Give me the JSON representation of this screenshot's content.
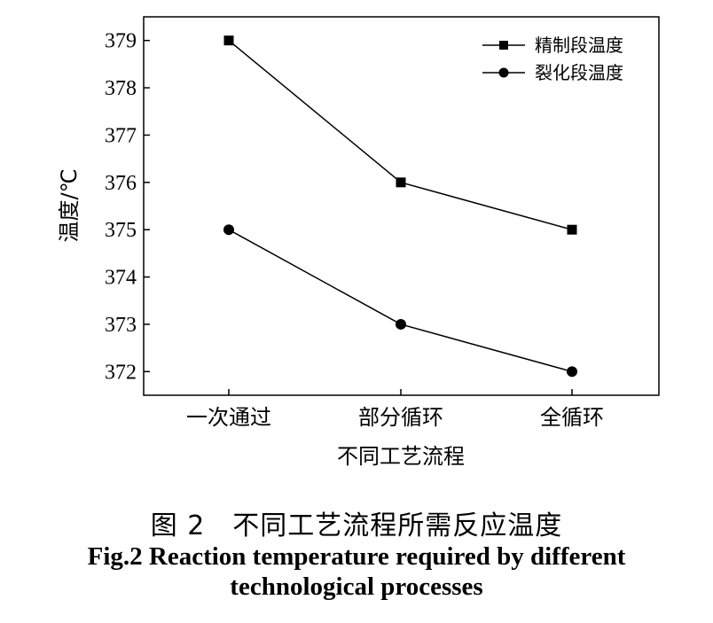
{
  "chart_data": {
    "type": "line",
    "categories": [
      "一次通过",
      "部分循环",
      "全循环"
    ],
    "series": [
      {
        "name": "精制段温度",
        "values": [
          379,
          376,
          375
        ],
        "marker": "square",
        "color": "#000000"
      },
      {
        "name": "裂化段温度",
        "values": [
          375,
          373,
          372
        ],
        "marker": "circle",
        "color": "#000000"
      }
    ],
    "xlabel": "不同工艺流程",
    "ylabel": "温度/℃",
    "ylim": [
      371.5,
      379.5
    ],
    "yticks": [
      372,
      373,
      374,
      375,
      376,
      377,
      378,
      379
    ],
    "grid": false,
    "legend_position": "top-right"
  },
  "caption": {
    "cn": "图 2　不同工艺流程所需反应温度",
    "en_line1": "Fig.2 Reaction temperature required by different",
    "en_line2": "technological processes"
  }
}
